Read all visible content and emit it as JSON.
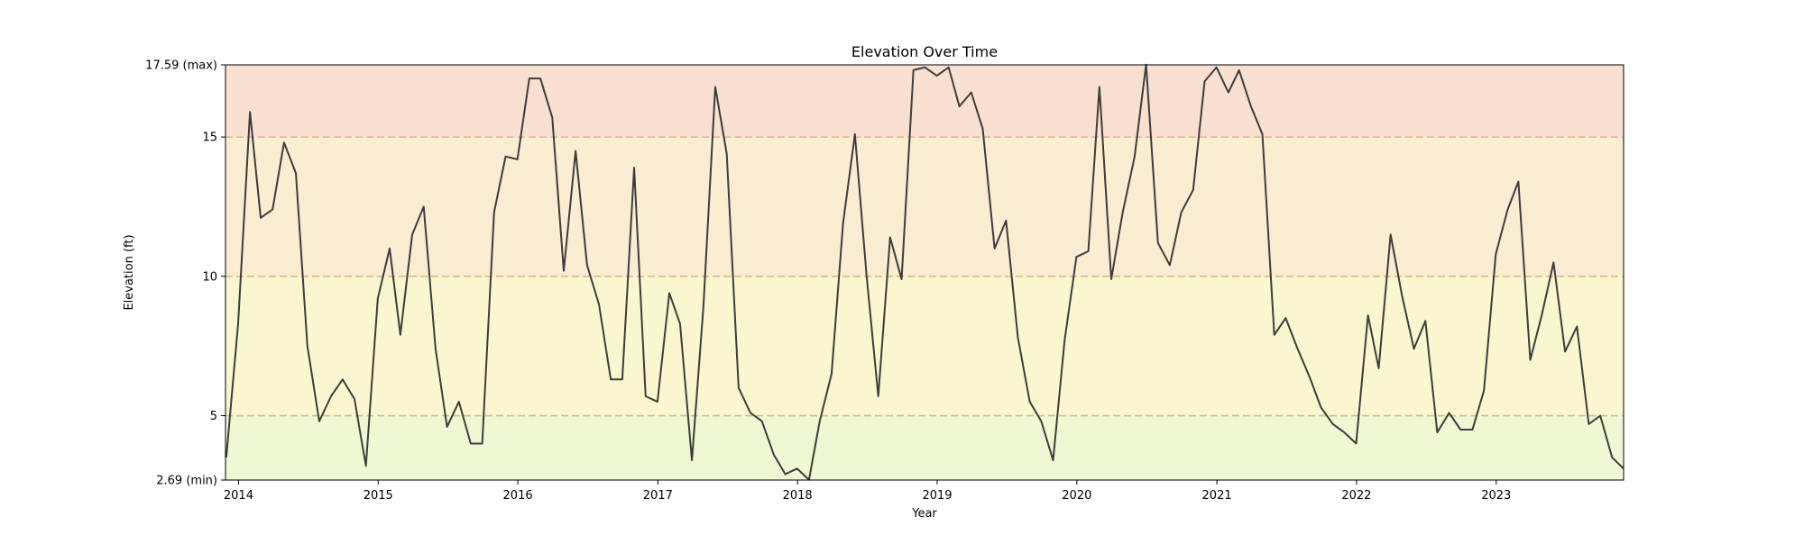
{
  "chart_data": {
    "type": "line",
    "title": "Elevation Over Time",
    "xlabel": "Year",
    "ylabel": "Elevation (ft)",
    "xlim": [
      "2013-11-28",
      "2023-11-30"
    ],
    "ylim": [
      2.69,
      17.59
    ],
    "y_ticks": [
      {
        "value": 2.69,
        "label": "2.69 (min)"
      },
      {
        "value": 5,
        "label": "5"
      },
      {
        "value": 10,
        "label": "10"
      },
      {
        "value": 15,
        "label": "15"
      },
      {
        "value": 17.59,
        "label": "17.59 (max)"
      }
    ],
    "x_ticks": [
      {
        "value": "2014-01-01",
        "label": "2014"
      },
      {
        "value": "2015-01-01",
        "label": "2015"
      },
      {
        "value": "2016-01-01",
        "label": "2016"
      },
      {
        "value": "2017-01-01",
        "label": "2017"
      },
      {
        "value": "2018-01-01",
        "label": "2018"
      },
      {
        "value": "2019-01-01",
        "label": "2019"
      },
      {
        "value": "2020-01-01",
        "label": "2020"
      },
      {
        "value": "2021-01-01",
        "label": "2021"
      },
      {
        "value": "2022-01-01",
        "label": "2022"
      },
      {
        "value": "2023-01-01",
        "label": "2023"
      }
    ],
    "bands": [
      {
        "from": 2.69,
        "to": 5,
        "color": "#eff8d2"
      },
      {
        "from": 5,
        "to": 10,
        "color": "#faf7d0"
      },
      {
        "from": 10,
        "to": 15,
        "color": "#faedd2"
      },
      {
        "from": 15,
        "to": 17.59,
        "color": "#f9e0d1"
      }
    ],
    "threshold_lines": [
      5,
      10,
      15
    ],
    "threshold_color": "#d8b88a",
    "line_color": "#3d3d3d",
    "grid": false,
    "legend": "none",
    "series": [
      {
        "x": [
          "2013-11-30",
          "2013-12-31",
          "2014-01-31",
          "2014-02-28",
          "2014-03-31",
          "2014-04-30",
          "2014-05-31",
          "2014-06-30",
          "2014-07-31",
          "2014-08-31",
          "2014-09-30",
          "2014-10-31",
          "2014-11-30",
          "2014-12-31",
          "2015-01-31",
          "2015-02-28",
          "2015-03-31",
          "2015-04-30",
          "2015-05-31",
          "2015-06-30",
          "2015-07-31",
          "2015-08-31",
          "2015-09-30",
          "2015-10-31",
          "2015-11-30",
          "2015-12-31",
          "2016-01-31",
          "2016-02-29",
          "2016-03-31",
          "2016-04-30",
          "2016-05-31",
          "2016-06-30",
          "2016-07-31",
          "2016-08-31",
          "2016-09-30",
          "2016-10-31",
          "2016-11-30",
          "2016-12-31",
          "2017-01-31",
          "2017-02-28",
          "2017-03-31",
          "2017-04-30",
          "2017-05-31",
          "2017-06-30",
          "2017-07-31",
          "2017-08-31",
          "2017-09-30",
          "2017-10-31",
          "2017-11-30",
          "2017-12-31",
          "2018-01-31",
          "2018-02-28",
          "2018-03-31",
          "2018-04-30",
          "2018-05-31",
          "2018-06-30",
          "2018-07-31",
          "2018-08-31",
          "2018-09-30",
          "2018-10-31",
          "2018-11-30",
          "2018-12-31",
          "2019-01-31",
          "2019-02-28",
          "2019-03-31",
          "2019-04-30",
          "2019-05-31",
          "2019-06-30",
          "2019-07-31",
          "2019-08-31",
          "2019-09-30",
          "2019-10-31",
          "2019-11-30",
          "2019-12-31",
          "2020-01-31",
          "2020-02-29",
          "2020-03-31",
          "2020-04-30",
          "2020-05-31",
          "2020-06-30",
          "2020-07-31",
          "2020-08-31",
          "2020-09-30",
          "2020-10-31",
          "2020-11-30",
          "2020-12-31",
          "2021-01-31",
          "2021-02-28",
          "2021-03-31",
          "2021-04-30",
          "2021-05-31",
          "2021-06-30",
          "2021-07-31",
          "2021-08-31",
          "2021-09-30",
          "2021-10-31",
          "2021-11-30",
          "2021-12-31",
          "2022-01-31",
          "2022-02-28",
          "2022-03-31",
          "2022-04-30",
          "2022-05-31",
          "2022-06-30",
          "2022-07-31",
          "2022-08-31",
          "2022-09-30",
          "2022-10-31",
          "2022-11-30",
          "2022-12-31",
          "2023-01-31",
          "2023-02-28",
          "2023-03-31",
          "2023-04-30",
          "2023-05-31",
          "2023-06-30",
          "2023-07-31",
          "2023-08-31",
          "2023-09-30",
          "2023-10-31",
          "2023-11-30"
        ],
        "y": [
          3.5,
          8.3,
          15.9,
          12.1,
          12.4,
          14.8,
          13.7,
          7.5,
          4.8,
          5.7,
          6.3,
          5.6,
          3.2,
          9.2,
          11.0,
          7.9,
          11.5,
          12.5,
          7.4,
          4.6,
          5.5,
          4.0,
          4.0,
          12.3,
          14.3,
          14.2,
          17.1,
          17.1,
          15.7,
          10.2,
          14.5,
          10.4,
          9.0,
          6.3,
          6.3,
          13.9,
          5.7,
          5.5,
          9.4,
          8.3,
          3.4,
          8.9,
          16.8,
          14.4,
          6.0,
          5.1,
          4.8,
          3.6,
          2.9,
          3.1,
          2.7,
          4.8,
          6.5,
          11.9,
          15.1,
          10.1,
          5.7,
          11.4,
          9.9,
          17.4,
          17.5,
          17.2,
          17.5,
          16.1,
          16.6,
          15.3,
          11.0,
          12.0,
          7.8,
          5.5,
          4.8,
          3.4,
          7.7,
          10.7,
          10.9,
          16.8,
          9.9,
          12.3,
          14.3,
          17.6,
          11.2,
          10.4,
          12.3,
          13.1,
          17.0,
          17.5,
          16.6,
          17.4,
          16.1,
          15.1,
          7.9,
          8.5,
          7.4,
          6.4,
          5.3,
          4.7,
          4.4,
          4.0,
          8.6,
          6.7,
          11.5,
          9.3,
          7.4,
          8.4,
          4.4,
          5.1,
          4.5,
          4.5,
          5.9,
          10.8,
          12.4,
          13.4,
          7.0,
          8.6,
          10.5,
          7.3,
          8.2,
          4.7,
          5.0,
          3.5,
          3.1
        ]
      }
    ]
  }
}
